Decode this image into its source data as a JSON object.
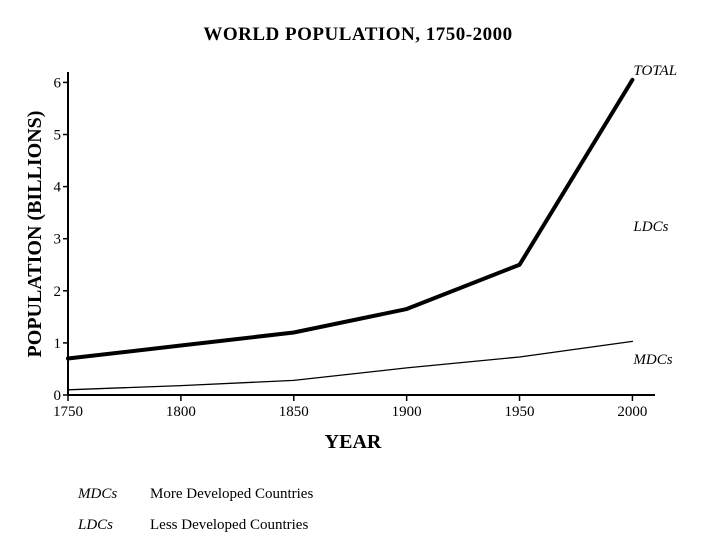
{
  "chart_data": {
    "type": "line",
    "title": "WORLD POPULATION, 1750-2000",
    "xlabel": "YEAR",
    "ylabel": "POPULATION (BILLIONS)",
    "xlim": [
      1750,
      2010
    ],
    "ylim": [
      0,
      6.2
    ],
    "x_ticks": [
      1750,
      1800,
      1850,
      1900,
      1950,
      2000
    ],
    "y_ticks": [
      0,
      1,
      2,
      3,
      4,
      5,
      6
    ],
    "series": [
      {
        "name": "TOTAL",
        "style": "thick",
        "x": [
          1750,
          1800,
          1850,
          1900,
          1950,
          2000
        ],
        "values": [
          0.7,
          0.95,
          1.2,
          1.65,
          2.5,
          6.05
        ]
      },
      {
        "name": "MDCs",
        "style": "thin",
        "x": [
          1750,
          1800,
          1850,
          1900,
          1950,
          2000
        ],
        "values": [
          0.1,
          0.18,
          0.28,
          0.52,
          0.73,
          1.03
        ]
      }
    ],
    "annotations": [
      {
        "text": "TOTAL",
        "x": 2000,
        "y": 6.05
      },
      {
        "text": "LDCs",
        "x": 2000,
        "y": 3.05
      },
      {
        "text": "MDCs",
        "x": 2000,
        "y": 0.5
      }
    ],
    "grid": false,
    "legend": "none"
  },
  "key": [
    {
      "abbr": "MDCs",
      "meaning": "More Developed Countries"
    },
    {
      "abbr": "LDCs",
      "meaning": "Less Developed Countries"
    }
  ]
}
